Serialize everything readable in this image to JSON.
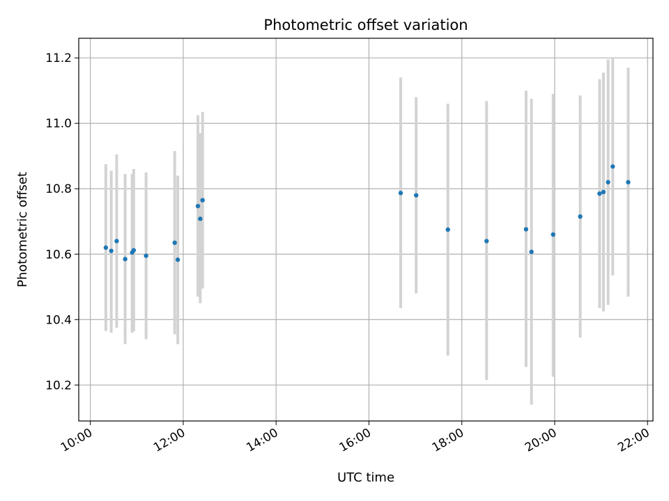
{
  "chart_data": {
    "type": "scatter",
    "title": "Photometric offset variation",
    "xlabel": "UTC time",
    "ylabel": "Photometric offset",
    "x_tick_labels": [
      "10:00",
      "12:00",
      "14:00",
      "16:00",
      "18:00",
      "20:00",
      "22:00"
    ],
    "y_tick_labels": [
      "10.2",
      "10.4",
      "10.6",
      "10.8",
      "11.0",
      "11.2"
    ],
    "xlim": [
      "09:45",
      "22:07"
    ],
    "ylim": [
      10.09,
      11.26
    ],
    "x_ticks": [
      "10:00",
      "12:00",
      "14:00",
      "16:00",
      "18:00",
      "20:00",
      "22:00"
    ],
    "y_ticks": [
      10.2,
      10.4,
      10.6,
      10.8,
      11.0,
      11.2
    ],
    "grid": true,
    "point_color": "#1f77b4",
    "errorbar_color": "#d3d3d3",
    "series": [
      {
        "points": [
          {
            "x": "10:20",
            "y": 10.62,
            "ylow": 10.365,
            "yhigh": 10.875
          },
          {
            "x": "10:27",
            "y": 10.61,
            "ylow": 10.36,
            "yhigh": 10.855
          },
          {
            "x": "10:34",
            "y": 10.64,
            "ylow": 10.375,
            "yhigh": 10.905
          },
          {
            "x": "10:45",
            "y": 10.585,
            "ylow": 10.325,
            "yhigh": 10.845
          },
          {
            "x": "10:54",
            "y": 10.605,
            "ylow": 10.36,
            "yhigh": 10.845
          },
          {
            "x": "10:56",
            "y": 10.612,
            "ylow": 10.365,
            "yhigh": 10.86
          },
          {
            "x": "11:12",
            "y": 10.595,
            "ylow": 10.34,
            "yhigh": 10.85
          },
          {
            "x": "11:49",
            "y": 10.635,
            "ylow": 10.355,
            "yhigh": 10.915
          },
          {
            "x": "11:53",
            "y": 10.583,
            "ylow": 10.325,
            "yhigh": 10.84
          },
          {
            "x": "12:19",
            "y": 10.747,
            "ylow": 10.47,
            "yhigh": 11.025
          },
          {
            "x": "12:22",
            "y": 10.708,
            "ylow": 10.45,
            "yhigh": 10.97
          },
          {
            "x": "12:25",
            "y": 10.765,
            "ylow": 10.495,
            "yhigh": 11.035
          },
          {
            "x": "16:41",
            "y": 10.787,
            "ylow": 10.435,
            "yhigh": 11.14
          },
          {
            "x": "17:01",
            "y": 10.78,
            "ylow": 10.48,
            "yhigh": 11.08
          },
          {
            "x": "17:42",
            "y": 10.675,
            "ylow": 10.29,
            "yhigh": 11.06
          },
          {
            "x": "18:32",
            "y": 10.64,
            "ylow": 10.215,
            "yhigh": 11.068
          },
          {
            "x": "19:23",
            "y": 10.676,
            "ylow": 10.255,
            "yhigh": 11.1
          },
          {
            "x": "19:30",
            "y": 10.607,
            "ylow": 10.14,
            "yhigh": 11.075
          },
          {
            "x": "19:58",
            "y": 10.66,
            "ylow": 10.225,
            "yhigh": 11.09
          },
          {
            "x": "20:33",
            "y": 10.715,
            "ylow": 10.345,
            "yhigh": 11.085
          },
          {
            "x": "20:58",
            "y": 10.785,
            "ylow": 10.435,
            "yhigh": 11.135
          },
          {
            "x": "21:03",
            "y": 10.79,
            "ylow": 10.425,
            "yhigh": 11.155
          },
          {
            "x": "21:09",
            "y": 10.82,
            "ylow": 10.445,
            "yhigh": 11.195
          },
          {
            "x": "21:15",
            "y": 10.868,
            "ylow": 10.535,
            "yhigh": 11.2
          },
          {
            "x": "21:35",
            "y": 10.82,
            "ylow": 10.47,
            "yhigh": 11.17
          }
        ]
      }
    ]
  }
}
